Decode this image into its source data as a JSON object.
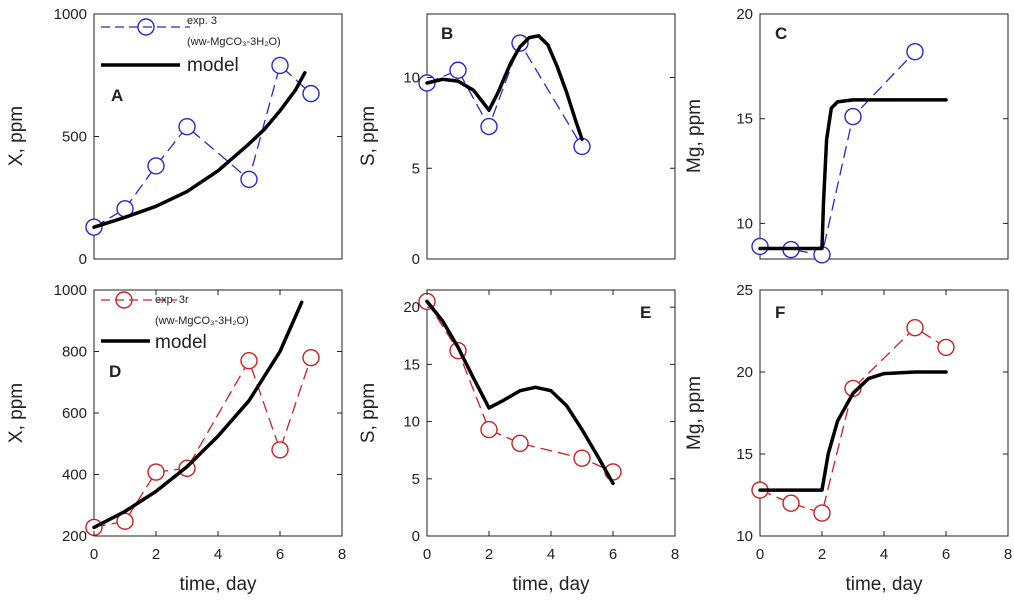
{
  "colors": {
    "exp3": "#2929c8",
    "exp3r": "#cc2020",
    "model": "#000000",
    "axis": "#222222"
  },
  "legend_top": {
    "series_label": "exp. 3",
    "series_sub": "(ww-MgCO₃-3H₂O)",
    "model_label": "model"
  },
  "legend_bottom": {
    "series_label": "exp. 3r",
    "series_sub": "(ww-MgCO₃-3H₂O)",
    "model_label": "model"
  },
  "chart_data": [
    {
      "id": "A",
      "tag": "A",
      "type": "line",
      "ylabel": "X, ppm",
      "xlabel": "",
      "xlim": [
        0,
        8
      ],
      "ylim": [
        0,
        1000
      ],
      "xticks": [],
      "yticks": [
        0,
        500,
        1000
      ],
      "series": [
        {
          "name": "exp. 3",
          "style": "exp",
          "color": "#2929c8",
          "markers": true,
          "x": [
            0,
            1,
            2,
            3,
            5,
            6,
            7
          ],
          "y": [
            130,
            205,
            380,
            540,
            325,
            790,
            675
          ]
        },
        {
          "name": "model",
          "style": "model",
          "color": "#000000",
          "markers": false,
          "x": [
            0,
            1,
            2,
            3,
            4,
            5,
            5.5,
            6,
            6.5,
            6.8
          ],
          "y": [
            130,
            170,
            215,
            275,
            360,
            470,
            530,
            605,
            690,
            760
          ]
        }
      ]
    },
    {
      "id": "B",
      "tag": "B",
      "type": "line",
      "ylabel": "S, ppm",
      "xlabel": "",
      "xlim": [
        0,
        8
      ],
      "ylim": [
        0,
        13.5
      ],
      "xticks": [],
      "yticks": [
        0,
        5,
        10
      ],
      "series": [
        {
          "name": "exp. 3",
          "style": "exp",
          "color": "#2929c8",
          "markers": true,
          "x": [
            0,
            1,
            2,
            3,
            5
          ],
          "y": [
            9.7,
            10.4,
            7.3,
            11.9,
            6.2
          ]
        },
        {
          "name": "model",
          "style": "model",
          "color": "#000000",
          "markers": false,
          "x": [
            0,
            0.5,
            1,
            1.5,
            2,
            2.3,
            2.7,
            3,
            3.3,
            3.6,
            3.9,
            4.2,
            4.5,
            4.8,
            5
          ],
          "y": [
            9.7,
            9.9,
            9.8,
            9.3,
            8.2,
            9.2,
            10.8,
            11.7,
            12.2,
            12.3,
            11.8,
            10.6,
            9.2,
            7.6,
            6.6
          ]
        }
      ]
    },
    {
      "id": "C",
      "tag": "C",
      "type": "line",
      "ylabel": "Mg, ppm",
      "xlabel": "",
      "xlim": [
        0,
        8
      ],
      "ylim": [
        8.3,
        20
      ],
      "xticks": [],
      "yticks": [
        10,
        15,
        20
      ],
      "series": [
        {
          "name": "exp. 3",
          "style": "exp",
          "color": "#2929c8",
          "markers": true,
          "x": [
            0,
            1,
            2,
            3,
            5
          ],
          "y": [
            8.9,
            8.75,
            8.5,
            15.1,
            18.2
          ]
        },
        {
          "name": "model",
          "style": "model",
          "color": "#000000",
          "markers": false,
          "x": [
            0,
            1,
            2,
            2.05,
            2.15,
            2.3,
            2.5,
            3,
            4,
            5,
            6
          ],
          "y": [
            8.8,
            8.8,
            8.8,
            11,
            14,
            15.5,
            15.8,
            15.9,
            15.9,
            15.9,
            15.9
          ]
        }
      ]
    },
    {
      "id": "D",
      "tag": "D",
      "type": "line",
      "ylabel": "X, ppm",
      "xlabel": "time, day",
      "xlim": [
        0,
        8
      ],
      "ylim": [
        200,
        1000
      ],
      "xticks": [
        0,
        2,
        4,
        6,
        8
      ],
      "yticks": [
        200,
        400,
        600,
        800,
        1000
      ],
      "series": [
        {
          "name": "exp. 3r",
          "style": "exp",
          "color": "#cc2020",
          "markers": true,
          "x": [
            0,
            1,
            2,
            3,
            5,
            6,
            7
          ],
          "y": [
            228,
            248,
            408,
            420,
            770,
            480,
            780
          ]
        },
        {
          "name": "model",
          "style": "model",
          "color": "#000000",
          "markers": false,
          "x": [
            0,
            1,
            2,
            3,
            4,
            5,
            6,
            6.7
          ],
          "y": [
            228,
            280,
            345,
            425,
            525,
            640,
            800,
            960
          ]
        }
      ]
    },
    {
      "id": "E",
      "tag": "E",
      "type": "line",
      "ylabel": "S, ppm",
      "xlabel": "time, day",
      "xlim": [
        0,
        8
      ],
      "ylim": [
        0,
        21.5
      ],
      "xticks": [
        0,
        2,
        4,
        6,
        8
      ],
      "yticks": [
        0,
        5,
        10,
        15,
        20
      ],
      "series": [
        {
          "name": "exp. 3r",
          "style": "exp",
          "color": "#cc2020",
          "markers": true,
          "x": [
            0,
            1,
            2,
            3,
            5,
            6
          ],
          "y": [
            20.5,
            16.2,
            9.3,
            8.1,
            6.8,
            5.6
          ]
        },
        {
          "name": "model",
          "style": "model",
          "color": "#000000",
          "markers": false,
          "x": [
            0,
            0.5,
            1,
            1.5,
            2,
            2.5,
            3,
            3.5,
            4,
            4.5,
            5,
            5.5,
            6
          ],
          "y": [
            20.5,
            18.8,
            16.5,
            13.8,
            11.2,
            11.9,
            12.7,
            13.0,
            12.7,
            11.4,
            9.3,
            7.0,
            4.6
          ]
        }
      ]
    },
    {
      "id": "F",
      "tag": "F",
      "type": "line",
      "ylabel": "Mg, ppm",
      "xlabel": "time, day",
      "xlim": [
        0,
        8
      ],
      "ylim": [
        10,
        25
      ],
      "xticks": [
        0,
        2,
        4,
        6,
        8
      ],
      "yticks": [
        10,
        15,
        20,
        25
      ],
      "series": [
        {
          "name": "exp. 3r",
          "style": "exp",
          "color": "#cc2020",
          "markers": true,
          "x": [
            0,
            1,
            2,
            3,
            5,
            6
          ],
          "y": [
            12.8,
            12.0,
            11.4,
            19.0,
            22.7,
            21.5
          ]
        },
        {
          "name": "model",
          "style": "model",
          "color": "#000000",
          "markers": false,
          "x": [
            0,
            1,
            2,
            2.2,
            2.5,
            3,
            3.5,
            4,
            5,
            6
          ],
          "y": [
            12.8,
            12.8,
            12.8,
            15.0,
            17.0,
            18.7,
            19.6,
            19.9,
            20.0,
            20.0
          ]
        }
      ]
    }
  ]
}
